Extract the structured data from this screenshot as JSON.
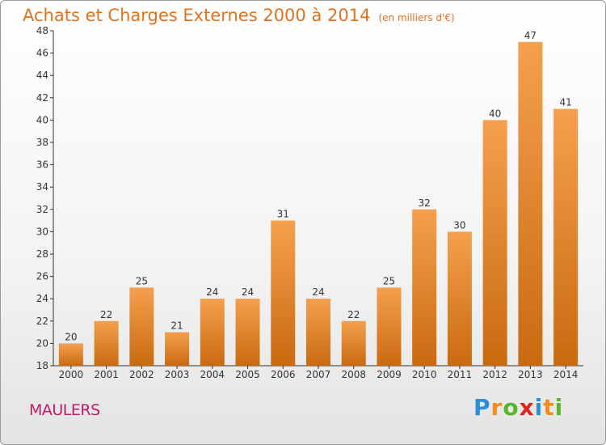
{
  "title": "Achats et Charges Externes 2000 à 2014",
  "subtitle": "(en milliers d'€)",
  "commune": "MAULERS",
  "logo": {
    "letters": [
      "P",
      "r",
      "o",
      "x",
      "i",
      "t",
      "i"
    ],
    "colors": [
      "#2a8fd6",
      "#f28c1f",
      "#5bb531",
      "#e0261b",
      "#2a8fd6",
      "#f28c1f",
      "#5bb531"
    ]
  },
  "colors": {
    "bar_light": "#f5a04e",
    "bar_dark": "#c96a10",
    "axis": "#333333",
    "grid": "#bbbbbb"
  },
  "chart_data": {
    "type": "bar",
    "categories": [
      "2000",
      "2001",
      "2002",
      "2003",
      "2004",
      "2005",
      "2006",
      "2007",
      "2008",
      "2009",
      "2010",
      "2011",
      "2012",
      "2013",
      "2014"
    ],
    "values": [
      20,
      22,
      25,
      21,
      24,
      24,
      31,
      24,
      22,
      25,
      32,
      30,
      40,
      47,
      41
    ],
    "title": "Achats et Charges Externes 2000 à 2014",
    "ylim": [
      18,
      48
    ],
    "yticks": [
      18,
      20,
      22,
      24,
      26,
      28,
      30,
      32,
      34,
      36,
      38,
      40,
      42,
      44,
      46,
      48
    ],
    "grid": false,
    "legend": "none"
  }
}
